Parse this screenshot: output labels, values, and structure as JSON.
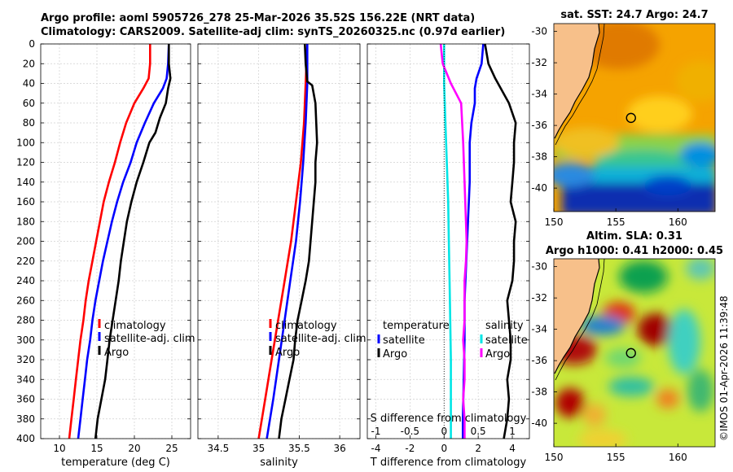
{
  "header": {
    "line1": "Argo profile: aoml 5905726_278 25-Mar-2026 35.52S 156.22E (NRT data)",
    "line2": "Climatology: CARS2009. Satellite-adj clim: synTS_20260325.nc (0.97d earlier)"
  },
  "copyright": "©IMOS 01-Apr-2026 11:39:48",
  "colors": {
    "clim": "#ff0000",
    "sat": "#0000ff",
    "argo": "#000000",
    "sat_sal": "#00e5e5",
    "argo_sal": "#ff00ff",
    "land": "#f7c08a"
  },
  "chart_data": [
    {
      "type": "line",
      "name": "temperature",
      "xlabel": "temperature (deg C)",
      "ylabel": "",
      "xlim": [
        7.5,
        27.5
      ],
      "ylim": [
        0,
        400
      ],
      "xticks": [
        10,
        15,
        20,
        25
      ],
      "yticks": [
        0,
        20,
        40,
        60,
        80,
        100,
        120,
        140,
        160,
        180,
        200,
        220,
        240,
        260,
        280,
        300,
        320,
        340,
        360,
        380,
        400
      ],
      "legend": [
        "climatology",
        "satellite-adj. clim",
        "Argo"
      ],
      "series": [
        {
          "name": "climatology",
          "color": "#ff0000",
          "points": [
            [
              22.1,
              0
            ],
            [
              22.1,
              20
            ],
            [
              21.9,
              35
            ],
            [
              21.2,
              45
            ],
            [
              20,
              60
            ],
            [
              18.9,
              80
            ],
            [
              18.1,
              100
            ],
            [
              17.4,
              120
            ],
            [
              16.6,
              140
            ],
            [
              15.9,
              160
            ],
            [
              15.4,
              180
            ],
            [
              14.9,
              200
            ],
            [
              14.4,
              220
            ],
            [
              13.9,
              240
            ],
            [
              13.5,
              260
            ],
            [
              13.2,
              280
            ],
            [
              12.8,
              300
            ],
            [
              12.5,
              320
            ],
            [
              12.2,
              340
            ],
            [
              11.9,
              360
            ],
            [
              11.6,
              380
            ],
            [
              11.3,
              400
            ]
          ]
        },
        {
          "name": "satellite-adj. clim",
          "color": "#0000ff",
          "points": [
            [
              24.6,
              0
            ],
            [
              24.5,
              20
            ],
            [
              24.3,
              35
            ],
            [
              23.8,
              45
            ],
            [
              22.6,
              60
            ],
            [
              21.4,
              80
            ],
            [
              20.3,
              100
            ],
            [
              19.5,
              120
            ],
            [
              18.5,
              140
            ],
            [
              17.7,
              160
            ],
            [
              17,
              180
            ],
            [
              16.4,
              200
            ],
            [
              15.8,
              220
            ],
            [
              15.3,
              240
            ],
            [
              14.8,
              260
            ],
            [
              14.4,
              280
            ],
            [
              14.1,
              300
            ],
            [
              13.7,
              320
            ],
            [
              13.4,
              340
            ],
            [
              13.1,
              360
            ],
            [
              12.8,
              380
            ],
            [
              12.5,
              400
            ]
          ]
        },
        {
          "name": "Argo",
          "color": "#000000",
          "points": [
            [
              24.6,
              0
            ],
            [
              24.6,
              20
            ],
            [
              24.8,
              35
            ],
            [
              24.5,
              45
            ],
            [
              24.2,
              60
            ],
            [
              23.4,
              75
            ],
            [
              22.8,
              90
            ],
            [
              22,
              100
            ],
            [
              21.2,
              120
            ],
            [
              20.3,
              140
            ],
            [
              19.6,
              160
            ],
            [
              19,
              180
            ],
            [
              18.6,
              200
            ],
            [
              18.2,
              220
            ],
            [
              17.9,
              240
            ],
            [
              17.5,
              260
            ],
            [
              17.1,
              280
            ],
            [
              16.7,
              300
            ],
            [
              16.4,
              320
            ],
            [
              16.1,
              340
            ],
            [
              15.6,
              360
            ],
            [
              15.1,
              380
            ],
            [
              14.8,
              400
            ]
          ]
        }
      ]
    },
    {
      "type": "line",
      "name": "salinity",
      "xlabel": "salinity",
      "ylabel": "",
      "xlim": [
        34.25,
        36.25
      ],
      "ylim": [
        0,
        400
      ],
      "xticks": [
        34.5,
        35,
        35.5,
        36
      ],
      "legend": [
        "climatology",
        "satellite-adj. clim",
        "Argo"
      ],
      "series": [
        {
          "name": "climatology",
          "color": "#ff0000",
          "points": [
            [
              35.6,
              0
            ],
            [
              35.58,
              40
            ],
            [
              35.56,
              80
            ],
            [
              35.52,
              120
            ],
            [
              35.46,
              160
            ],
            [
              35.4,
              200
            ],
            [
              35.32,
              240
            ],
            [
              35.24,
              280
            ],
            [
              35.16,
              320
            ],
            [
              35.08,
              360
            ],
            [
              35,
              400
            ]
          ]
        },
        {
          "name": "satellite-adj. clim",
          "color": "#0000ff",
          "points": [
            [
              35.6,
              0
            ],
            [
              35.6,
              40
            ],
            [
              35.58,
              80
            ],
            [
              35.55,
              120
            ],
            [
              35.51,
              160
            ],
            [
              35.46,
              200
            ],
            [
              35.39,
              240
            ],
            [
              35.32,
              280
            ],
            [
              35.25,
              320
            ],
            [
              35.18,
              360
            ],
            [
              35.1,
              400
            ]
          ]
        },
        {
          "name": "Argo",
          "color": "#000000",
          "points": [
            [
              35.57,
              0
            ],
            [
              35.58,
              20
            ],
            [
              35.6,
              38
            ],
            [
              35.66,
              42
            ],
            [
              35.7,
              60
            ],
            [
              35.71,
              80
            ],
            [
              35.72,
              100
            ],
            [
              35.7,
              120
            ],
            [
              35.7,
              140
            ],
            [
              35.68,
              160
            ],
            [
              35.66,
              180
            ],
            [
              35.64,
              200
            ],
            [
              35.62,
              220
            ],
            [
              35.58,
              240
            ],
            [
              35.53,
              260
            ],
            [
              35.48,
              280
            ],
            [
              35.45,
              300
            ],
            [
              35.43,
              320
            ],
            [
              35.38,
              340
            ],
            [
              35.33,
              360
            ],
            [
              35.28,
              380
            ],
            [
              35.25,
              400
            ]
          ]
        }
      ]
    },
    {
      "type": "line",
      "name": "difference",
      "xlabel": "T difference from climatology",
      "xlabel_top": "S difference from climatology",
      "xlim": [
        -4.5,
        5
      ],
      "ylim": [
        0,
        400
      ],
      "xticks": [
        -4,
        -2,
        0,
        2,
        4
      ],
      "xticks_top": [
        -1,
        -0.5,
        0,
        0.5,
        1
      ],
      "xticks_top_labels": [
        "-1",
        "-0.5",
        "0",
        "0.5",
        "1"
      ],
      "legend_temperature": {
        "title": "temperature",
        "items": [
          "satellite",
          "Argo"
        ]
      },
      "legend_salinity": {
        "title": "salinity",
        "items": [
          "satellite",
          "Argo"
        ]
      },
      "series": [
        {
          "name": "T satellite",
          "color": "#0000ff",
          "points": [
            [
              2.3,
              0
            ],
            [
              2.2,
              20
            ],
            [
              1.9,
              35
            ],
            [
              1.8,
              45
            ],
            [
              1.8,
              60
            ],
            [
              1.6,
              80
            ],
            [
              1.5,
              100
            ],
            [
              1.5,
              140
            ],
            [
              1.4,
              180
            ],
            [
              1.3,
              220
            ],
            [
              1.2,
              260
            ],
            [
              1.2,
              300
            ],
            [
              1.15,
              340
            ],
            [
              1.1,
              380
            ],
            [
              1.1,
              400
            ]
          ]
        },
        {
          "name": "T Argo",
          "color": "#000000",
          "points": [
            [
              2.4,
              0
            ],
            [
              2.6,
              20
            ],
            [
              3.0,
              35
            ],
            [
              3.8,
              60
            ],
            [
              4.2,
              80
            ],
            [
              4.1,
              100
            ],
            [
              4.1,
              120
            ],
            [
              4.0,
              140
            ],
            [
              3.9,
              160
            ],
            [
              4.2,
              180
            ],
            [
              4.1,
              200
            ],
            [
              4.1,
              220
            ],
            [
              4.0,
              240
            ],
            [
              3.7,
              260
            ],
            [
              3.8,
              280
            ],
            [
              3.9,
              300
            ],
            [
              3.9,
              320
            ],
            [
              3.7,
              340
            ],
            [
              3.8,
              360
            ],
            [
              3.7,
              380
            ],
            [
              3.5,
              400
            ]
          ]
        },
        {
          "name": "S satellite",
          "color": "#00e5e5",
          "points": [
            [
              0,
              0
            ],
            [
              0,
              40
            ],
            [
              0.02,
              80
            ],
            [
              0.04,
              120
            ],
            [
              0.06,
              160
            ],
            [
              0.07,
              200
            ],
            [
              0.08,
              240
            ],
            [
              0.09,
              280
            ],
            [
              0.1,
              320
            ],
            [
              0.1,
              360
            ],
            [
              0.1,
              400
            ]
          ]
        },
        {
          "name": "S Argo",
          "color": "#ff00ff",
          "points": [
            [
              -0.05,
              0
            ],
            [
              -0.02,
              20
            ],
            [
              0.1,
              40
            ],
            [
              0.25,
              60
            ],
            [
              0.28,
              100
            ],
            [
              0.3,
              140
            ],
            [
              0.32,
              180
            ],
            [
              0.33,
              200
            ],
            [
              0.32,
              220
            ],
            [
              0.3,
              240
            ],
            [
              0.3,
              280
            ],
            [
              0.28,
              300
            ],
            [
              0.3,
              320
            ],
            [
              0.3,
              340
            ],
            [
              0.28,
              360
            ],
            [
              0.3,
              380
            ],
            [
              0.3,
              400
            ]
          ]
        }
      ]
    },
    {
      "type": "heatmap",
      "name": "sst-map",
      "title": "sat. SST: 24.7 Argo: 24.7",
      "xlim": [
        150,
        163
      ],
      "ylim": [
        -41.5,
        -29.5
      ],
      "xticks": [
        150,
        155,
        160
      ],
      "yticks": [
        -30,
        -32,
        -34,
        -36,
        -38,
        -40
      ],
      "profile": {
        "lon": 156.22,
        "lat": -35.52
      }
    },
    {
      "type": "heatmap",
      "name": "sla-map",
      "title_line1": "Altim. SLA: 0.31",
      "title_line2": "Argo h1000: 0.41 h2000: 0.45",
      "xlim": [
        150,
        163
      ],
      "ylim": [
        -41.5,
        -29.5
      ],
      "xticks": [
        150,
        155,
        160
      ],
      "yticks": [
        -30,
        -32,
        -34,
        -36,
        -38,
        -40
      ],
      "profile": {
        "lon": 156.22,
        "lat": -35.52
      }
    }
  ]
}
